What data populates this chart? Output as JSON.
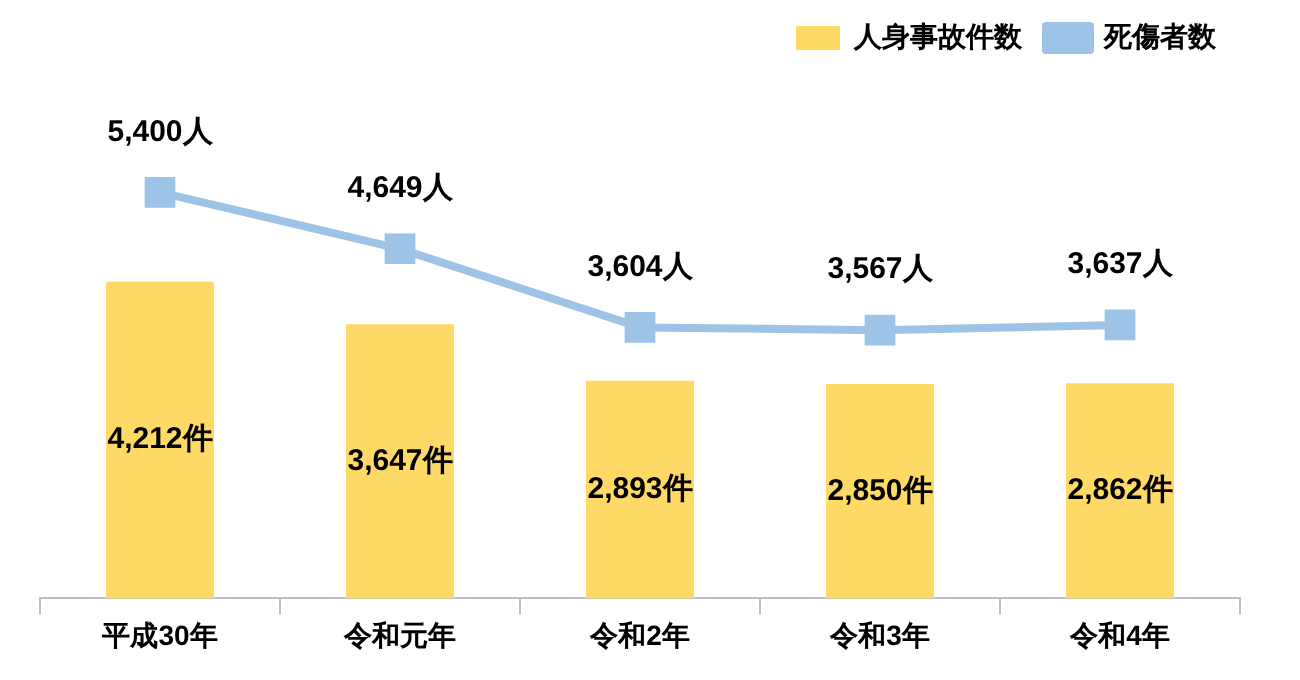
{
  "chart_data": {
    "type": "bar",
    "categories": [
      "平成30年",
      "令和元年",
      "令和2年",
      "令和3年",
      "令和4年"
    ],
    "series": [
      {
        "name": "人身事故件数",
        "color": "#ffd966",
        "values": [
          4212,
          3647,
          2893,
          2850,
          2862
        ],
        "value_labels": [
          "4,212件",
          "3,647件",
          "2,893件",
          "2,850件",
          "2,862件"
        ]
      },
      {
        "name": "死傷者数",
        "type": "line",
        "color": "#9dc3e6",
        "values": [
          5400,
          4649,
          3604,
          3567,
          3637
        ],
        "value_labels": [
          "5,400人",
          "4,649人",
          "3,604人",
          "3,567人",
          "3,637人"
        ]
      }
    ],
    "legend": "top right",
    "marker": "square",
    "line_style": "solid",
    "grid": false,
    "tick_labels": "x"
  }
}
